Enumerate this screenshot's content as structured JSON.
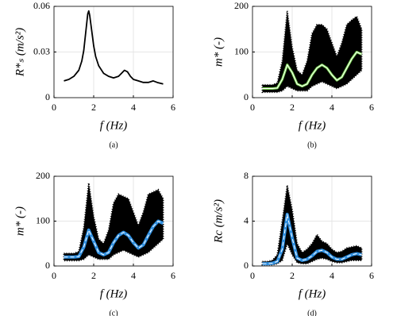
{
  "chart_data": [
    {
      "type": "line",
      "caption": "(a)",
      "xlabel": "f (Hz)",
      "ylabel": "R*ₛ (m/s²)",
      "xlim": [
        0,
        6
      ],
      "xticks": [
        0,
        2,
        4,
        6
      ],
      "ylim": [
        0,
        0.06
      ],
      "yticks": [
        0,
        0.03,
        0.06
      ],
      "grid": true,
      "x": [
        0.5,
        0.75,
        1.0,
        1.25,
        1.4,
        1.5,
        1.6,
        1.7,
        1.75,
        1.8,
        1.9,
        2.0,
        2.1,
        2.25,
        2.5,
        2.75,
        3.0,
        3.25,
        3.4,
        3.55,
        3.7,
        3.85,
        4.0,
        4.25,
        4.5,
        4.75,
        5.0,
        5.2,
        5.5
      ],
      "series": [
        {
          "kind": "line",
          "color": "#000000",
          "values": [
            0.011,
            0.012,
            0.014,
            0.018,
            0.024,
            0.031,
            0.043,
            0.055,
            0.057,
            0.054,
            0.044,
            0.034,
            0.027,
            0.021,
            0.016,
            0.014,
            0.013,
            0.014,
            0.016,
            0.018,
            0.017,
            0.014,
            0.012,
            0.011,
            0.01,
            0.01,
            0.011,
            0.01,
            0.009
          ]
        }
      ]
    },
    {
      "type": "line",
      "caption": "(b)",
      "xlabel": "f (Hz)",
      "ylabel": "m* (-)",
      "xlim": [
        0,
        6
      ],
      "xticks": [
        0,
        2,
        4,
        6
      ],
      "ylim": [
        0,
        200
      ],
      "yticks": [
        0,
        100,
        200
      ],
      "grid": true,
      "x": [
        0.5,
        0.75,
        1.0,
        1.25,
        1.5,
        1.75,
        2.0,
        2.25,
        2.5,
        2.75,
        3.0,
        3.25,
        3.5,
        3.75,
        4.0,
        4.25,
        4.5,
        4.75,
        5.0,
        5.25,
        5.5
      ],
      "series": [
        {
          "kind": "band",
          "color": "#000000",
          "upper": [
            28,
            28,
            28,
            32,
            80,
            190,
            110,
            60,
            50,
            80,
            140,
            160,
            160,
            150,
            120,
            90,
            120,
            160,
            170,
            178,
            150
          ],
          "lower": [
            12,
            12,
            12,
            12,
            15,
            25,
            20,
            15,
            15,
            15,
            25,
            30,
            35,
            30,
            25,
            20,
            25,
            30,
            40,
            50,
            60
          ]
        },
        {
          "kind": "line",
          "color": "#7ed957",
          "width": 3,
          "values": [
            20,
            20,
            20,
            21,
            40,
            72,
            55,
            30,
            25,
            30,
            50,
            65,
            72,
            65,
            50,
            38,
            45,
            65,
            85,
            100,
            95
          ]
        },
        {
          "kind": "line",
          "color": "#ffffff",
          "width": 1,
          "values": [
            20,
            20,
            20,
            21,
            40,
            72,
            55,
            30,
            25,
            30,
            50,
            65,
            72,
            65,
            50,
            38,
            45,
            65,
            85,
            100,
            95
          ]
        }
      ]
    },
    {
      "type": "line",
      "caption": "(c)",
      "xlabel": "f (Hz)",
      "ylabel": "m* (-)",
      "xlim": [
        0,
        6
      ],
      "xticks": [
        0,
        2,
        4,
        6
      ],
      "ylim": [
        0,
        200
      ],
      "yticks": [
        0,
        100,
        200
      ],
      "grid": true,
      "x": [
        0.5,
        0.75,
        1.0,
        1.25,
        1.5,
        1.75,
        2.0,
        2.25,
        2.5,
        2.75,
        3.0,
        3.25,
        3.5,
        3.75,
        4.0,
        4.25,
        4.5,
        4.75,
        5.0,
        5.25,
        5.5
      ],
      "series": [
        {
          "kind": "band",
          "color": "#000000",
          "upper": [
            28,
            28,
            28,
            32,
            85,
            185,
            110,
            60,
            50,
            80,
            140,
            160,
            155,
            150,
            120,
            90,
            120,
            160,
            165,
            170,
            150
          ],
          "lower": [
            12,
            12,
            12,
            12,
            15,
            25,
            20,
            15,
            15,
            15,
            25,
            30,
            35,
            30,
            25,
            20,
            25,
            30,
            40,
            50,
            60
          ]
        },
        {
          "kind": "line",
          "color": "#2f8fe0",
          "width": 4,
          "values": [
            20,
            20,
            20,
            21,
            42,
            80,
            55,
            30,
            25,
            30,
            52,
            68,
            75,
            68,
            52,
            40,
            47,
            68,
            88,
            100,
            95
          ]
        },
        {
          "kind": "line",
          "color": "#ffffff",
          "width": 1,
          "dash": true,
          "values": [
            20,
            20,
            20,
            21,
            42,
            80,
            55,
            30,
            25,
            30,
            52,
            68,
            75,
            68,
            52,
            40,
            47,
            68,
            88,
            100,
            95
          ]
        }
      ]
    },
    {
      "type": "line",
      "caption": "(d)",
      "xlabel": "f (Hz)",
      "ylabel": "Rc (m/s²)",
      "xlim": [
        0,
        6
      ],
      "xticks": [
        0,
        2,
        4,
        6
      ],
      "ylim": [
        0,
        8
      ],
      "yticks": [
        0,
        4,
        8
      ],
      "grid": true,
      "x": [
        0.5,
        0.75,
        1.0,
        1.25,
        1.5,
        1.75,
        2.0,
        2.25,
        2.5,
        2.75,
        3.0,
        3.25,
        3.5,
        3.75,
        4.0,
        4.25,
        4.5,
        4.75,
        5.0,
        5.25,
        5.5
      ],
      "series": [
        {
          "kind": "band",
          "color": "#000000",
          "upper": [
            0.4,
            0.4,
            0.5,
            1,
            4,
            7.2,
            5,
            2,
            1.2,
            1.5,
            2,
            2.8,
            2.2,
            2,
            1.5,
            1.2,
            1.3,
            1.6,
            1.7,
            1.8,
            1.6
          ],
          "lower": [
            0.1,
            0.1,
            0.1,
            0.2,
            0.5,
            2,
            1,
            0.3,
            0.2,
            0.2,
            0.4,
            0.6,
            0.7,
            0.6,
            0.4,
            0.3,
            0.3,
            0.4,
            0.5,
            0.5,
            0.5
          ]
        },
        {
          "kind": "line",
          "color": "#2f8fe0",
          "width": 4,
          "values": [
            0.2,
            0.2,
            0.25,
            0.4,
            1.5,
            4.6,
            2.5,
            0.7,
            0.5,
            0.6,
            0.9,
            1.3,
            1.4,
            1.2,
            0.8,
            0.6,
            0.6,
            0.8,
            1.0,
            1.1,
            1.0
          ]
        },
        {
          "kind": "line",
          "color": "#ffffff",
          "width": 1,
          "dash": true,
          "values": [
            0.2,
            0.2,
            0.25,
            0.4,
            1.5,
            4.6,
            2.5,
            0.7,
            0.5,
            0.6,
            0.9,
            1.3,
            1.4,
            1.2,
            0.8,
            0.6,
            0.6,
            0.8,
            1.0,
            1.1,
            1.0
          ]
        }
      ]
    }
  ]
}
